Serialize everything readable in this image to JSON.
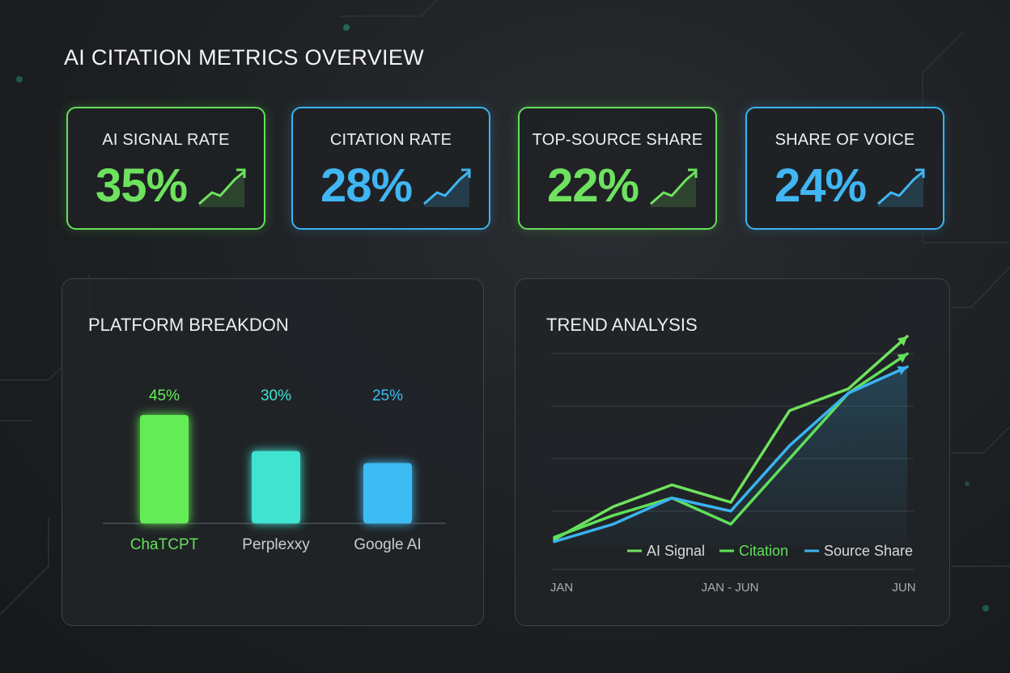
{
  "page": {
    "title": "AI CITATION METRICS OVERVIEW"
  },
  "kpis": [
    {
      "label": "AI SIGNAL RATE",
      "value": "35%",
      "color": "#6ee25e"
    },
    {
      "label": "CITATION RATE",
      "value": "28%",
      "color": "#40b6f2"
    },
    {
      "label": "TOP-SOURCE SHARE",
      "value": "22%",
      "color": "#6ee25e"
    },
    {
      "label": "SHARE OF VOICE",
      "value": "24%",
      "color": "#40b6f2"
    }
  ],
  "icons": {
    "kpi_trend": "trend-up-arrow-icon"
  },
  "platform_breakdown": {
    "title": "PLATFORM BREAKDON"
  },
  "trend_analysis": {
    "title": "TREND ANALYSIS"
  },
  "chart_data": [
    {
      "type": "bar",
      "title": "PLATFORM BREAKDON",
      "categories": [
        "ChaTCPT",
        "Perplexxy",
        "Google AI"
      ],
      "values": [
        45,
        30,
        25
      ],
      "value_labels": [
        "45%",
        "30%",
        "25%"
      ],
      "colors": [
        "#63ec55",
        "#3fe3cf",
        "#3dbcf4"
      ],
      "grid": false
    },
    {
      "type": "line",
      "title": "TREND ANALYSIS",
      "x_ticks": [
        "JAN",
        "JAN - JUN",
        "JUN"
      ],
      "x": [
        0,
        1,
        2,
        3,
        4,
        5,
        6
      ],
      "ylim": [
        0,
        100
      ],
      "grid": true,
      "legend_position": "bottom-right",
      "series": [
        {
          "name": "AI Signal",
          "color": "#6ee25e",
          "values": [
            3,
            18,
            28,
            20,
            62,
            72,
            96
          ]
        },
        {
          "name": "Citation",
          "color": "#5fe05a",
          "values": [
            4,
            14,
            22,
            10,
            40,
            70,
            88
          ]
        },
        {
          "name": "Source Share",
          "color": "#3ab3f0",
          "values": [
            2,
            10,
            22,
            16,
            46,
            70,
            82
          ]
        }
      ]
    }
  ]
}
